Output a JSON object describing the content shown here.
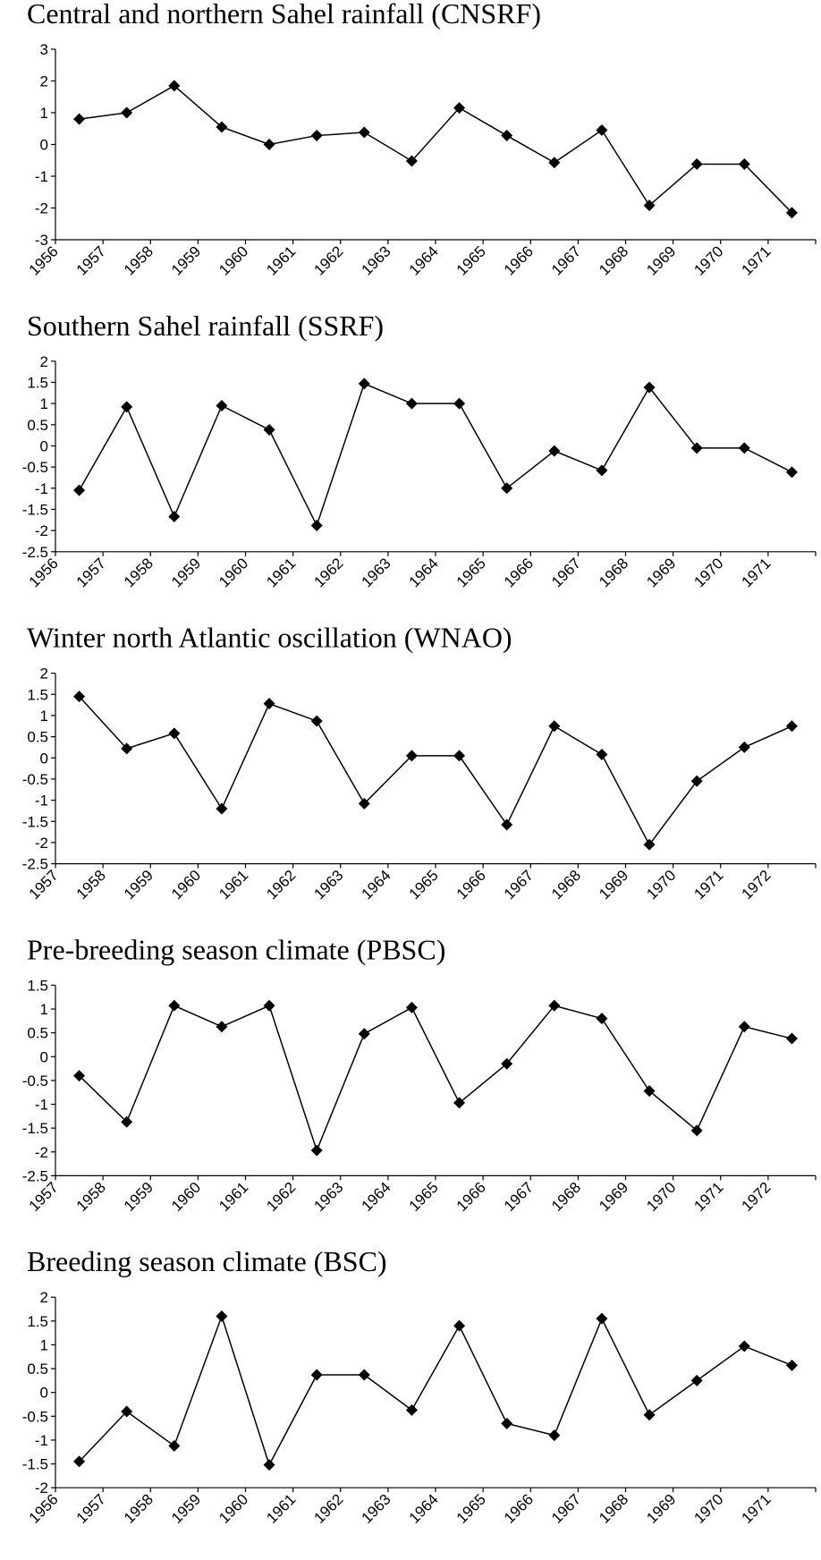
{
  "chart_data": [
    {
      "type": "line",
      "title": "Central and northern Sahel rainfall  (CNSRF)",
      "categories": [
        "1956",
        "1957",
        "1958",
        "1959",
        "1960",
        "1961",
        "1962",
        "1963",
        "1964",
        "1965",
        "1966",
        "1967",
        "1968",
        "1969",
        "1970",
        "1971"
      ],
      "values": [
        0.8,
        1.0,
        1.85,
        0.55,
        0,
        0.28,
        0.38,
        -0.52,
        1.15,
        0.28,
        -0.57,
        0.45,
        -1.92,
        -0.62,
        -0.62,
        -2.15
      ],
      "color": "#000000",
      "ylim": [
        -3,
        3
      ],
      "yticks": [
        -3,
        -2,
        -1,
        0,
        1,
        2,
        3
      ]
    },
    {
      "type": "line",
      "title": "Southern Sahel rainfall  (SSRF)",
      "categories": [
        "1956",
        "1957",
        "1958",
        "1959",
        "1960",
        "1961",
        "1962",
        "1963",
        "1964",
        "1965",
        "1966",
        "1967",
        "1968",
        "1969",
        "1970",
        "1971"
      ],
      "values": [
        -1.05,
        0.92,
        -1.67,
        0.95,
        0.38,
        -1.88,
        1.47,
        1.0,
        1.0,
        -1.0,
        -0.12,
        -0.58,
        1.38,
        -0.05,
        -0.05,
        -0.62
      ],
      "color": "#000000",
      "ylim": [
        -2.5,
        2
      ],
      "yticks": [
        -2.5,
        -2,
        -1.5,
        -1,
        -0.5,
        0,
        0.5,
        1,
        1.5,
        2
      ]
    },
    {
      "type": "line",
      "title": "Winter north Atlantic oscillation  (WNAO)",
      "categories": [
        "1957",
        "1958",
        "1959",
        "1960",
        "1961",
        "1962",
        "1963",
        "1964",
        "1965",
        "1966",
        "1967",
        "1968",
        "1969",
        "1970",
        "1971",
        "1972"
      ],
      "values": [
        1.45,
        0.22,
        0.58,
        -1.2,
        1.28,
        0.87,
        -1.08,
        0.05,
        0.05,
        -1.58,
        0.75,
        0.08,
        -2.05,
        -0.55,
        0.25,
        0.75
      ],
      "color": "#000000",
      "ylim": [
        -2.5,
        2
      ],
      "yticks": [
        -2.5,
        -2,
        -1.5,
        -1,
        -0.5,
        0,
        0.5,
        1,
        1.5,
        2
      ]
    },
    {
      "type": "line",
      "title": "Pre-breeding season climate (PBSC)",
      "categories": [
        "1957",
        "1958",
        "1959",
        "1960",
        "1961",
        "1962",
        "1963",
        "1964",
        "1965",
        "1966",
        "1967",
        "1968",
        "1969",
        "1970",
        "1971",
        "1972"
      ],
      "values": [
        -0.4,
        -1.37,
        1.07,
        0.63,
        1.07,
        -1.97,
        0.48,
        1.03,
        -0.97,
        -0.15,
        1.07,
        0.8,
        -0.72,
        -1.55,
        0.63,
        0.38
      ],
      "color": "#000000",
      "ylim": [
        -2.5,
        1.5
      ],
      "yticks": [
        -2.5,
        -2,
        -1.5,
        -1,
        -0.5,
        0,
        0.5,
        1,
        1.5
      ]
    },
    {
      "type": "line",
      "title": "Breeding season climate (BSC)",
      "categories": [
        "1956",
        "1957",
        "1958",
        "1959",
        "1960",
        "1961",
        "1962",
        "1963",
        "1964",
        "1965",
        "1966",
        "1967",
        "1968",
        "1969",
        "1970",
        "1971"
      ],
      "values": [
        -1.45,
        -0.4,
        -1.12,
        1.6,
        -1.52,
        0.37,
        0.37,
        -0.37,
        1.4,
        -0.65,
        -0.9,
        1.55,
        -0.47,
        0.25,
        0.97,
        0.57
      ],
      "color": "#000000",
      "ylim": [
        -2,
        2
      ],
      "yticks": [
        -2,
        -1.5,
        -1,
        -0.5,
        0,
        0.5,
        1,
        1.5,
        2
      ]
    }
  ]
}
